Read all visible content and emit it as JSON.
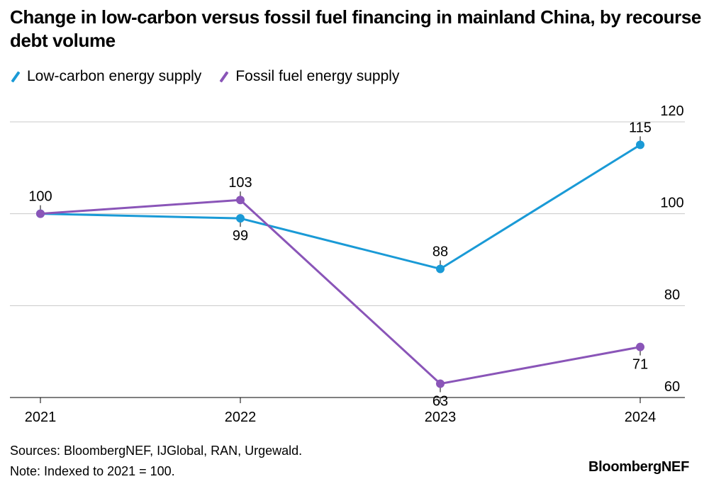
{
  "title": "Change in low-carbon versus fossil fuel financing in mainland China, by recourse debt volume",
  "legend": [
    {
      "label": "Low-carbon energy supply",
      "color": "#1a9ad6"
    },
    {
      "label": "Fossil fuel energy supply",
      "color": "#8a55b8"
    }
  ],
  "chart_data": {
    "type": "line",
    "x": [
      "2021",
      "2022",
      "2023",
      "2024"
    ],
    "series": [
      {
        "name": "Low-carbon energy supply",
        "color": "#1a9ad6",
        "values": [
          100,
          99,
          88,
          115
        ]
      },
      {
        "name": "Fossil fuel energy supply",
        "color": "#8a55b8",
        "values": [
          100,
          103,
          63,
          71
        ]
      }
    ],
    "ylim": [
      60,
      120
    ],
    "yticks": [
      60,
      80,
      100,
      120
    ],
    "y_axis_position": "right",
    "grid": true,
    "legend_position": "top-left"
  },
  "footer": {
    "sources": "Sources: BloombergNEF, IJGlobal, RAN, Urgewald.",
    "note": "Note: Indexed to 2021 = 100.",
    "brand": "BloombergNEF"
  }
}
